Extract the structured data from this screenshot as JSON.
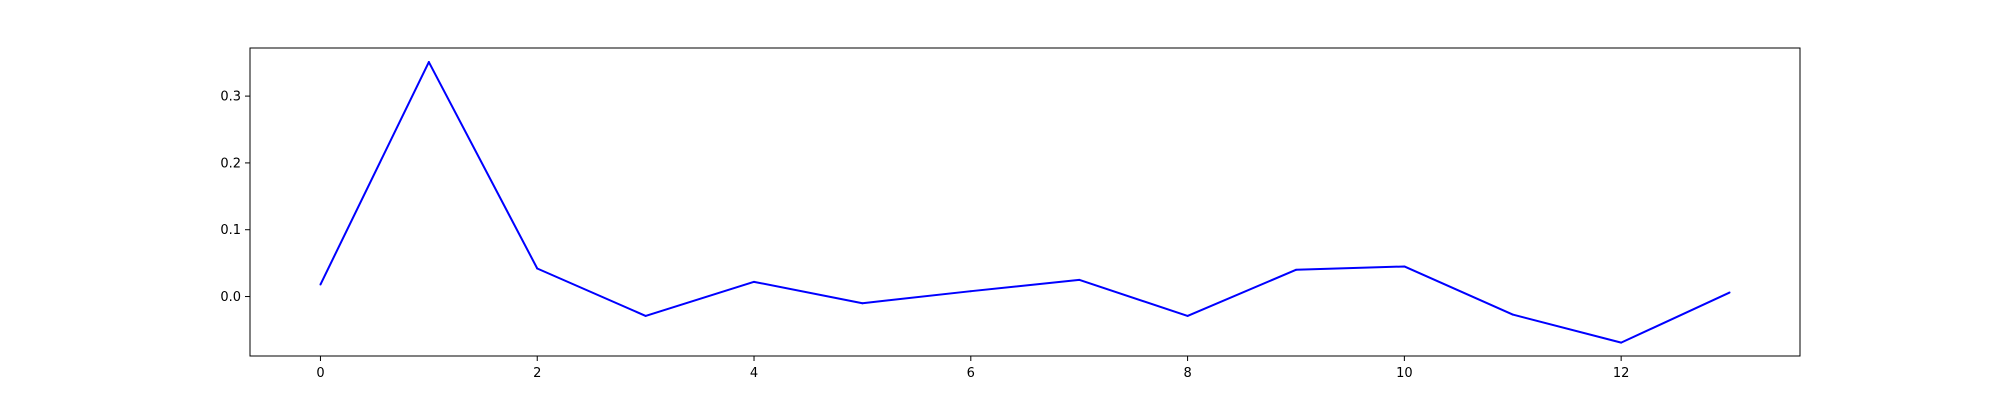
{
  "chart_data": {
    "type": "line",
    "title": "",
    "xlabel": "",
    "ylabel": "",
    "x": [
      0,
      1,
      2,
      3,
      4,
      5,
      6,
      7,
      8,
      9,
      10,
      11,
      12,
      13
    ],
    "series": [
      {
        "values": [
          0.018,
          0.351,
          0.042,
          -0.029,
          0.022,
          -0.01,
          0.008,
          0.025,
          -0.029,
          0.04,
          0.045,
          -0.027,
          -0.069,
          0.006
        ],
        "color": "#0000ff"
      }
    ],
    "xlim": [
      -0.65,
      13.65
    ],
    "ylim": [
      -0.089,
      0.372
    ],
    "xticks": [
      0,
      2,
      4,
      6,
      8,
      10,
      12
    ],
    "xtick_labels": [
      "0",
      "2",
      "4",
      "6",
      "8",
      "10",
      "12"
    ],
    "yticks": [
      0.0,
      0.1,
      0.2,
      0.3
    ],
    "ytick_labels": [
      "0.0",
      "0.1",
      "0.2",
      "0.3"
    ],
    "grid": false,
    "legend": "none"
  }
}
